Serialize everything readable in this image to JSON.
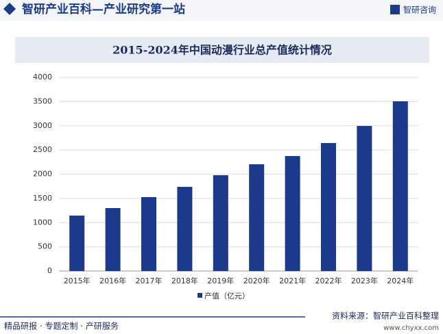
{
  "header": {
    "title": "智研产业百科—产业研究第一站",
    "logo": "智研咨询"
  },
  "chart_data": {
    "type": "bar",
    "title": "2015-2024年中国动漫行业总产值统计情况",
    "categories": [
      "2015年",
      "2016年",
      "2017年",
      "2018年",
      "2019年",
      "2020年",
      "2021年",
      "2022年",
      "2023年",
      "2024年"
    ],
    "series": [
      {
        "name": "产值（亿元）",
        "color": "#1b3a8c",
        "values": [
          1145,
          1300,
          1527,
          1738,
          1979,
          2205,
          2375,
          2643,
          2996,
          3505
        ]
      }
    ],
    "ylim": [
      0,
      4000
    ],
    "yticks": [
      0,
      500,
      1000,
      1500,
      2000,
      2500,
      3000,
      3500,
      4000
    ],
    "grid": true,
    "legend": "bottom"
  },
  "footer": {
    "services": "精品研报 · 专题定制 · 产研服务",
    "source": "资料来源：智研产业百科整理",
    "website": "www.chyxx.com"
  }
}
